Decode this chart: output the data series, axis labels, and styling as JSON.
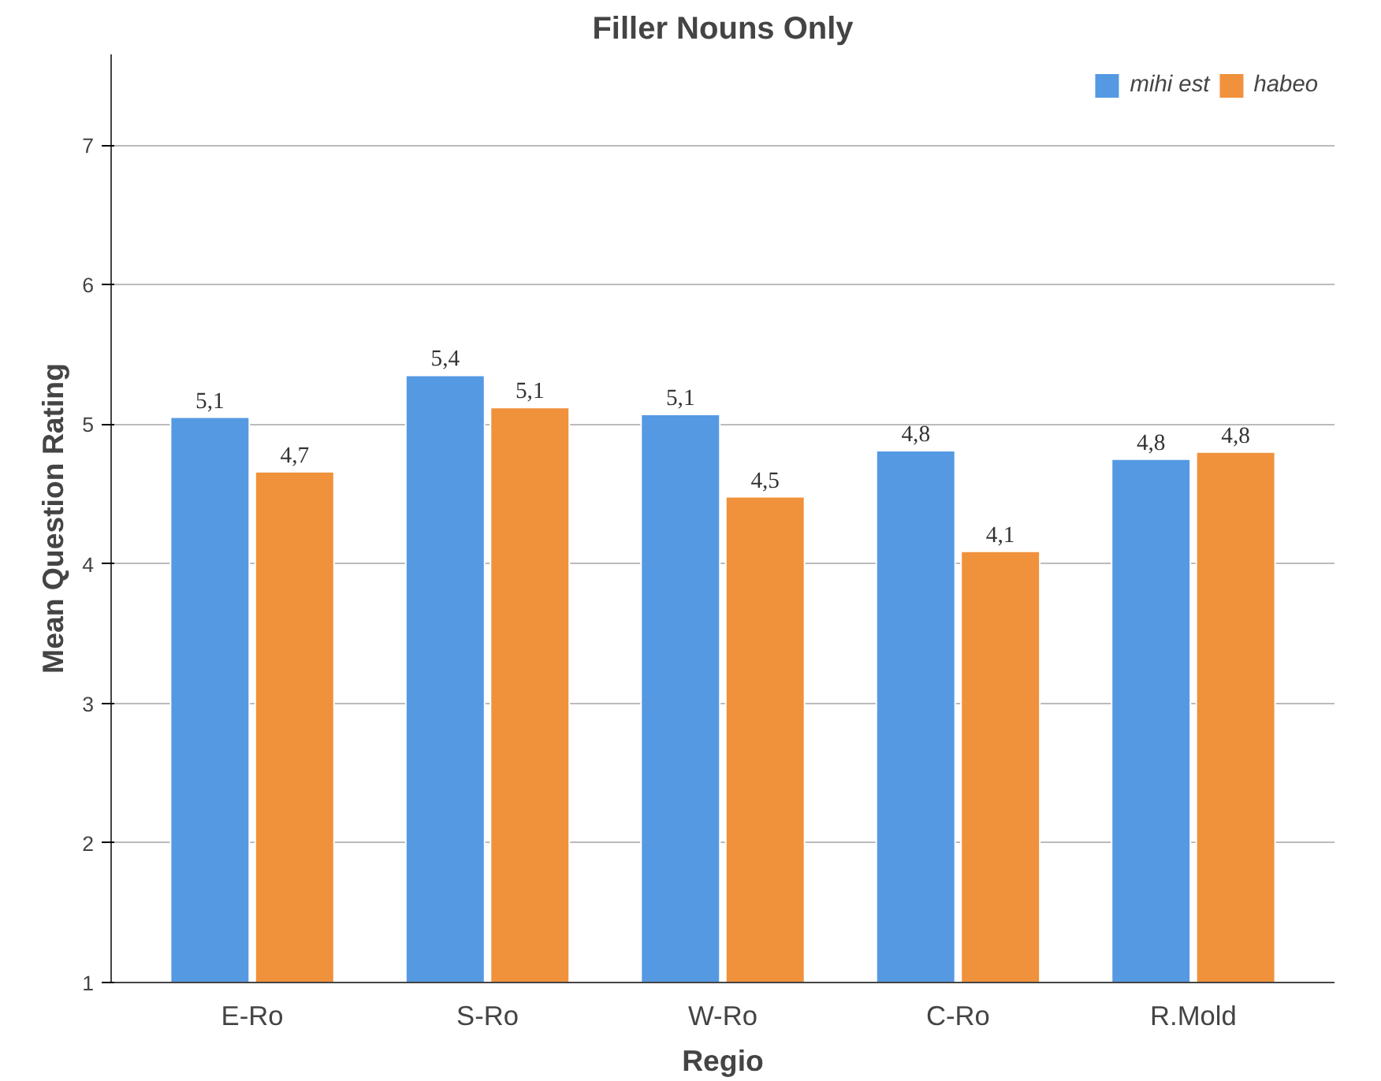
{
  "chart_data": {
    "type": "bar",
    "title": "Filler Nouns Only",
    "xlabel": "Regio",
    "ylabel": "Mean Question Rating",
    "categories": [
      "E-Ro",
      "S-Ro",
      "W-Ro",
      "C-Ro",
      "R.Mold"
    ],
    "series": [
      {
        "name": "mihi est",
        "color": "#5599e3",
        "values": [
          5.05,
          5.35,
          5.07,
          4.81,
          4.75
        ],
        "value_labels": [
          "5,1",
          "5,4",
          "5,1",
          "4,8",
          "4,8"
        ]
      },
      {
        "name": "habeo",
        "color": "#f0913c",
        "values": [
          4.66,
          5.12,
          4.48,
          4.09,
          4.8
        ],
        "value_labels": [
          "4,7",
          "5,1",
          "4,5",
          "4,1",
          "4,8"
        ]
      }
    ],
    "ylim": [
      1,
      7.65
    ],
    "yticks": [
      1,
      2,
      3,
      4,
      5,
      6,
      7
    ],
    "grid": "y",
    "legend": "top right"
  }
}
